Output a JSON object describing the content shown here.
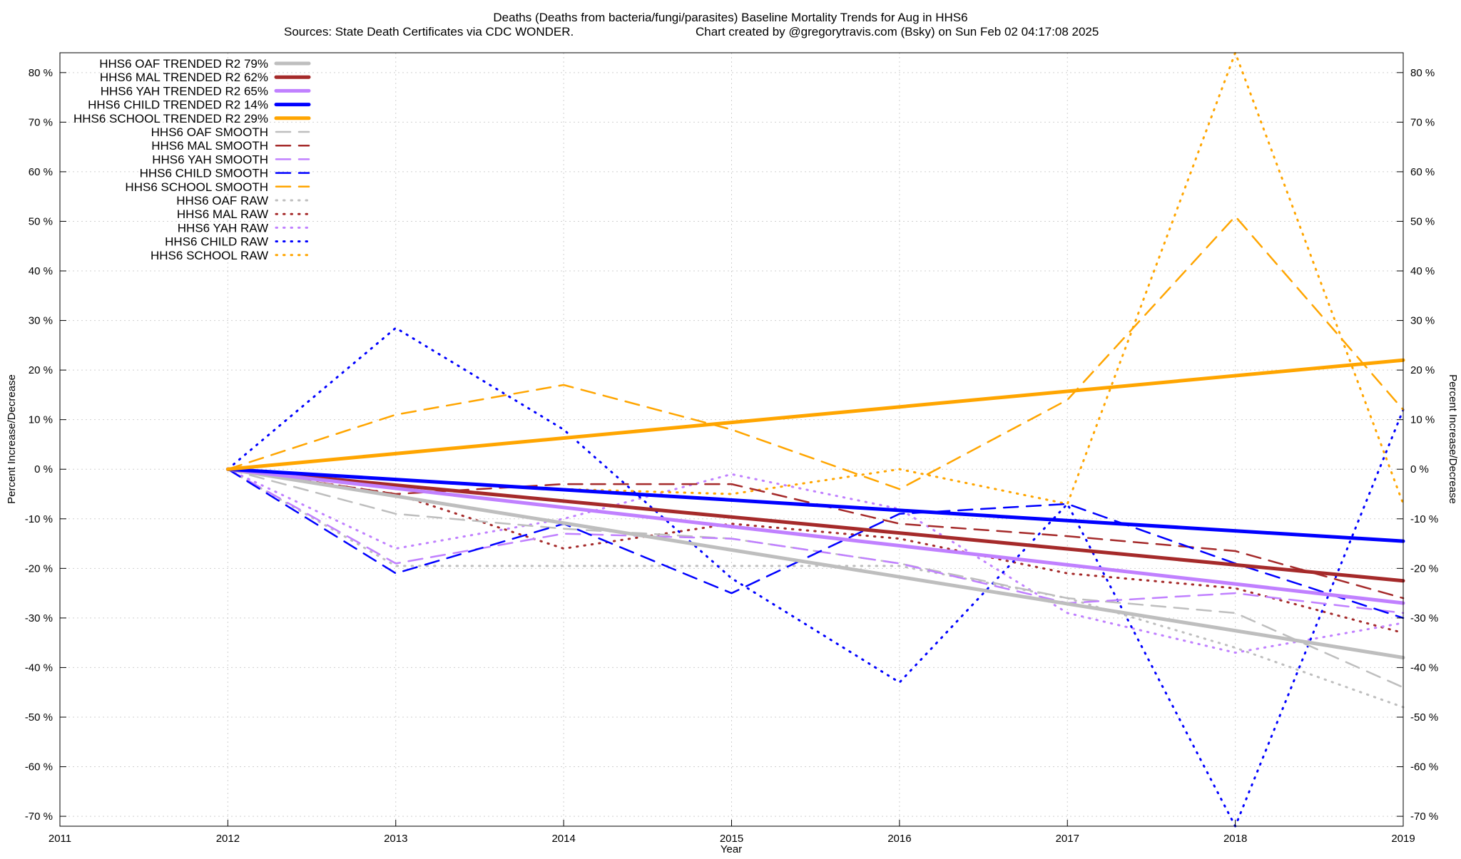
{
  "chart_data": {
    "type": "line",
    "title": "Deaths (Deaths from bacteria/fungi/parasites)  Baseline Mortality Trends for Aug in HHS6",
    "subtitle_left": "Sources: State Death Certificates via CDC WONDER.",
    "subtitle_right": "Chart created by @gregorytravis.com (Bsky) on Sun Feb 02 04:17:08 2025",
    "xlabel": "Year",
    "ylabel": "Percent Increase/Decrease",
    "y2label": "Percent Increase/Decrease",
    "xlim": [
      2011,
      2019
    ],
    "ylim": [
      -72,
      84
    ],
    "x_ticks": [
      2011,
      2012,
      2013,
      2014,
      2015,
      2016,
      2017,
      2018,
      2019
    ],
    "x_tick_labels": [
      "2011",
      "2012",
      "2013",
      "2014",
      "2015",
      "2016",
      "2017",
      "2018",
      "2019"
    ],
    "y_ticks": [
      -70,
      -60,
      -50,
      -40,
      -30,
      -20,
      -10,
      0,
      10,
      20,
      30,
      40,
      50,
      60,
      70,
      80
    ],
    "y_tick_labels": [
      "-70 %",
      "-60 %",
      "-50 %",
      "-40 %",
      "-30 %",
      "-20 %",
      "-10 %",
      "0 %",
      "10 %",
      "20 %",
      "30 %",
      "40 %",
      "50 %",
      "60 %",
      "70 %",
      "80 %"
    ],
    "grid": true,
    "legend_position": "top-left",
    "colors": {
      "oaf": "#bebebe",
      "mal": "#a52a2a",
      "yah": "#c080ff",
      "child": "#0000ff",
      "school": "#ffa500"
    },
    "series": [
      {
        "name": "HHS6 OAF TRENDED R2",
        "r2": "79%",
        "style": "trend",
        "color": "#bebebe",
        "x": [
          2012,
          2019
        ],
        "y": [
          0,
          -38
        ]
      },
      {
        "name": "HHS6 MAL TRENDED R2",
        "r2": "62%",
        "style": "trend",
        "color": "#a52a2a",
        "x": [
          2012,
          2019
        ],
        "y": [
          0,
          -22.5
        ]
      },
      {
        "name": "HHS6 YAH TRENDED R2",
        "r2": "65%",
        "style": "trend",
        "color": "#c080ff",
        "x": [
          2012,
          2019
        ],
        "y": [
          0,
          -27
        ]
      },
      {
        "name": "HHS6 CHILD TRENDED R2",
        "r2": "14%",
        "style": "trend",
        "color": "#0000ff",
        "x": [
          2012,
          2019
        ],
        "y": [
          0,
          -14.5
        ]
      },
      {
        "name": "HHS6 SCHOOL TRENDED R2",
        "r2": "29%",
        "style": "trend",
        "color": "#ffa500",
        "x": [
          2012,
          2019
        ],
        "y": [
          0,
          22
        ]
      },
      {
        "name": "HHS6 OAF SMOOTH",
        "style": "smooth",
        "color": "#bebebe",
        "x": [
          2012,
          2013,
          2014,
          2015,
          2016,
          2017,
          2018,
          2019
        ],
        "y": [
          0,
          -9,
          -12,
          -14,
          -19,
          -26,
          -29,
          -44
        ]
      },
      {
        "name": "HHS6 MAL SMOOTH",
        "style": "smooth",
        "color": "#a52a2a",
        "x": [
          2012,
          2013,
          2014,
          2015,
          2016,
          2017,
          2018,
          2019
        ],
        "y": [
          0,
          -5,
          -3,
          -3,
          -11,
          -13.5,
          -16.5,
          -26
        ]
      },
      {
        "name": "HHS6 YAH SMOOTH",
        "style": "smooth",
        "color": "#c080ff",
        "x": [
          2012,
          2013,
          2014,
          2015,
          2016,
          2017,
          2018,
          2019
        ],
        "y": [
          0,
          -19,
          -13,
          -14,
          -19,
          -27,
          -25,
          -29
        ]
      },
      {
        "name": "HHS6 CHILD SMOOTH",
        "style": "smooth",
        "color": "#0000ff",
        "x": [
          2012,
          2013,
          2014,
          2015,
          2016,
          2017,
          2018,
          2019
        ],
        "y": [
          0,
          -21,
          -11,
          -25,
          -9,
          -7,
          -19,
          -30
        ]
      },
      {
        "name": "HHS6 SCHOOL SMOOTH",
        "style": "smooth",
        "color": "#ffa500",
        "x": [
          2012,
          2013,
          2014,
          2015,
          2016,
          2017,
          2018,
          2019
        ],
        "y": [
          0,
          11,
          17,
          8,
          -4,
          14,
          51,
          12
        ]
      },
      {
        "name": "HHS6 OAF RAW",
        "style": "raw",
        "color": "#bebebe",
        "x": [
          2012,
          2013,
          2014,
          2015,
          2016,
          2017,
          2018,
          2019
        ],
        "y": [
          0,
          -19.5,
          -19.5,
          -19.5,
          -19.5,
          -26,
          -36,
          -48
        ]
      },
      {
        "name": "HHS6 MAL RAW",
        "style": "raw",
        "color": "#a52a2a",
        "x": [
          2012,
          2013,
          2014,
          2015,
          2016,
          2017,
          2018,
          2019
        ],
        "y": [
          0,
          -5,
          -16,
          -11,
          -14,
          -21,
          -24,
          -33
        ]
      },
      {
        "name": "HHS6 YAH RAW",
        "style": "raw",
        "color": "#c080ff",
        "x": [
          2012,
          2013,
          2014,
          2015,
          2016,
          2017,
          2018,
          2019
        ],
        "y": [
          0,
          -16,
          -10,
          -1,
          -8,
          -29,
          -37,
          -31
        ]
      },
      {
        "name": "HHS6 CHILD RAW",
        "style": "raw",
        "color": "#0000ff",
        "x": [
          2012,
          2013,
          2014,
          2015,
          2016,
          2017,
          2018,
          2019
        ],
        "y": [
          0,
          28.5,
          8,
          -22,
          -43,
          -7,
          -72,
          12
        ]
      },
      {
        "name": "HHS6 SCHOOL RAW",
        "style": "raw",
        "color": "#ffa500",
        "x": [
          2012,
          2013,
          2014,
          2015,
          2016,
          2017,
          2018,
          2019
        ],
        "y": [
          0,
          -2,
          -4,
          -5,
          0,
          -7,
          84,
          -7
        ]
      }
    ]
  }
}
